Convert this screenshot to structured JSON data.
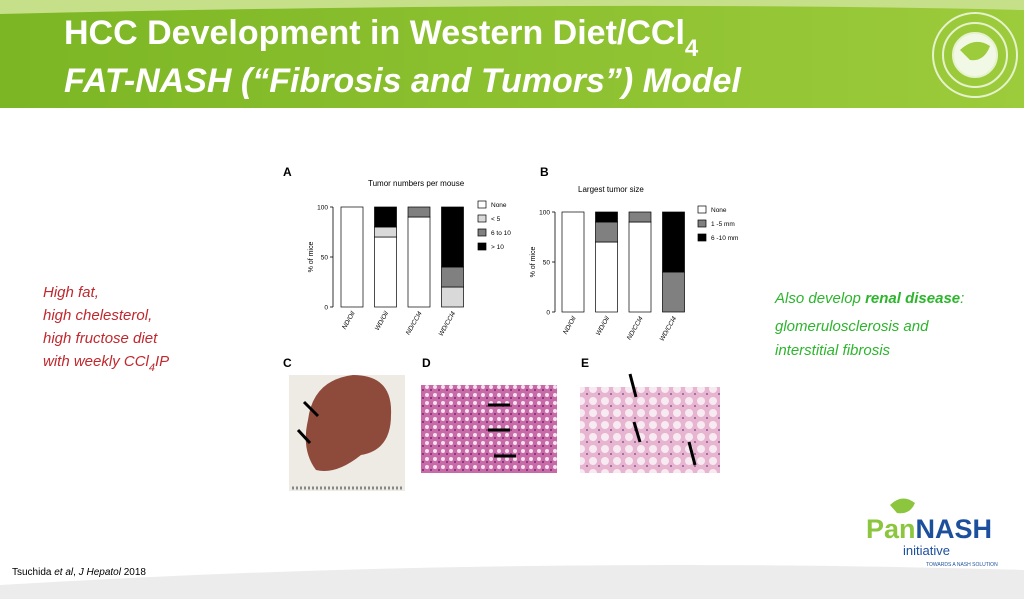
{
  "header": {
    "title_line1": "HCC Development in Western Diet/CCl",
    "title_sub": "4",
    "title_line2": "FAT-NASH (“Fibrosis and Tumors”) Model"
  },
  "left_text": {
    "lines": [
      "High fat,",
      "high chelesterol,",
      "high fructose diet"
    ],
    "last_line": [
      "with weekly CCl",
      "4",
      "IP"
    ]
  },
  "chart_data": [
    {
      "type": "bar",
      "stacked": true,
      "panel": "A",
      "title": "Tumor numbers per mouse",
      "y_label": "% of mice",
      "categories": [
        "ND/Oil",
        "WD/Oil",
        "ND/CCl4",
        "WD/CCl4"
      ],
      "ylim": [
        0,
        100
      ],
      "yticks": [
        0,
        50,
        100
      ],
      "series": [
        {
          "name": "None",
          "color": "#ffffff",
          "values": [
            100,
            70,
            90,
            0
          ]
        },
        {
          "name": "< 5",
          "color": "#d9d9d9",
          "values": [
            0,
            10,
            0,
            20
          ]
        },
        {
          "name": "6 to 10",
          "color": "#808080",
          "values": [
            0,
            0,
            10,
            20
          ]
        },
        {
          "name": "> 10",
          "color": "#000000",
          "values": [
            0,
            20,
            0,
            60
          ]
        }
      ]
    },
    {
      "type": "bar",
      "stacked": true,
      "panel": "B",
      "title": "Largest tumor size",
      "y_label": "% of mice",
      "categories": [
        "ND/Oil",
        "WD/Oil",
        "ND/CCl4",
        "WD/CCl4"
      ],
      "ylim": [
        0,
        100
      ],
      "yticks": [
        0,
        50,
        100
      ],
      "series": [
        {
          "name": "None",
          "color": "#ffffff",
          "values": [
            100,
            70,
            90,
            0
          ]
        },
        {
          "name": "1 -5 mm",
          "color": "#808080",
          "values": [
            0,
            20,
            10,
            40
          ]
        },
        {
          "name": "6 -10 mm",
          "color": "#000000",
          "values": [
            0,
            10,
            0,
            60
          ]
        }
      ]
    }
  ],
  "figure_panels": [
    "C",
    "D",
    "E"
  ],
  "right_text": {
    "first_line": [
      "Also develop ",
      "renal disease",
      ":"
    ],
    "lines": [
      "glomerulosclerosis and",
      "interstitial fibrosis"
    ]
  },
  "citation": [
    "Tsuchida ",
    "et al",
    ", ",
    "J Hepatol",
    " 2018"
  ],
  "logo": {
    "pan": "Pan",
    "nash": "NASH",
    "initiative": "initiative",
    "tagline": "TOWARDS A NASH SOLUTION"
  }
}
